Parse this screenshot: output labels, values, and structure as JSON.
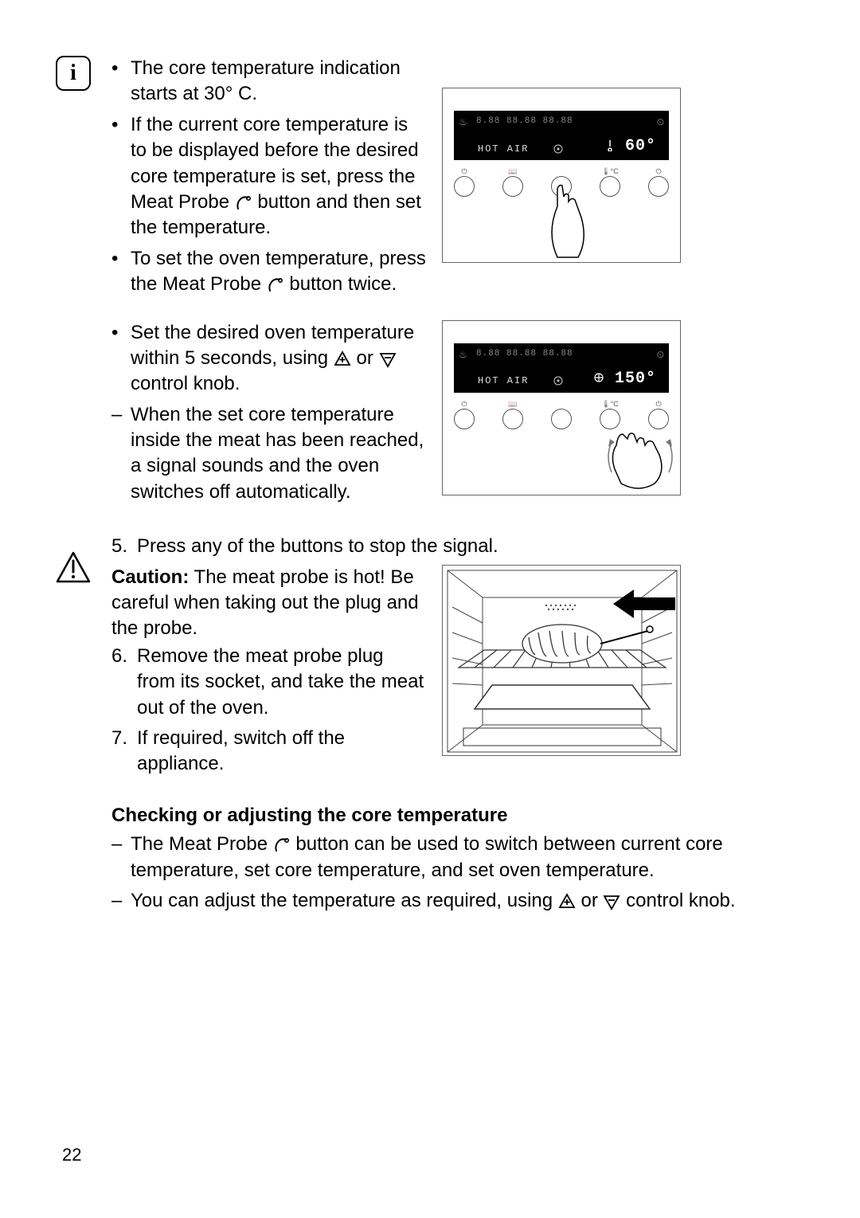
{
  "page_number": "22",
  "info_block": {
    "bullets": [
      "The core temperature indication starts at 30° C.",
      "If the current core temperature is to be displayed before the desired core temperature is set, press the Meat Probe ⟨probe⟩ button and then set the temperature.",
      "To set the oven temperature, press the Meat Probe ⟨probe⟩ button twice."
    ]
  },
  "set_block": {
    "bullet": "Set the desired oven temperature within 5 seconds, using ⟨plus⟩ or ⟨minus⟩ control knob.",
    "dash": "When the set core temperature inside the meat has been reached, a signal sounds and the oven switches off automatically."
  },
  "step5": "Press any of the buttons to stop the signal.",
  "caution_block": {
    "caution_label": "Caution:",
    "caution_text": " The meat probe is hot! Be careful when taking out the plug and the probe.",
    "step6": "Remove the meat probe plug from its socket, and take the meat out of the oven.",
    "step7": "If required, switch off the appliance."
  },
  "checking": {
    "heading": "Checking or adjusting the core temperature",
    "dash1": "The Meat Probe ⟨probe⟩ button can be used to switch between current core temperature, set core temperature, and set oven temperature.",
    "dash2": "You can adjust the temperature as required, using ⟨plus⟩ or ⟨minus⟩ control knob."
  },
  "panel1": {
    "mode": "HOT AIR",
    "temp": "60°",
    "segment": "8.88 88.88 88.88"
  },
  "panel2": {
    "mode": "HOT AIR",
    "temp": "150°",
    "segment": "8.88 88.88 88.88"
  }
}
